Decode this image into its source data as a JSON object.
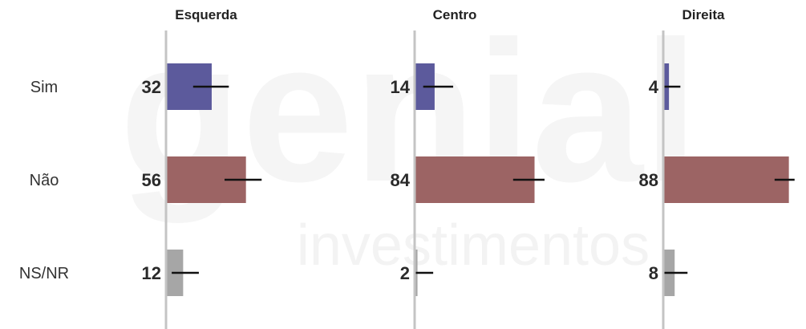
{
  "watermark": {
    "line1": "genial",
    "line2": "investimentos"
  },
  "colors": {
    "Sim": "#5c5a9c",
    "Não": "#9c6464",
    "NS/NR": "#a6a6a6",
    "axis": "#c4c4c4",
    "errorbar": "#111111"
  },
  "chart_data": {
    "type": "bar",
    "orientation": "horizontal",
    "categories": [
      "Sim",
      "Não",
      "NS/NR"
    ],
    "panels": [
      {
        "title": "Esquerda",
        "values": [
          32,
          56,
          12
        ],
        "labels": [
          "32",
          "56",
          "12"
        ],
        "error_low": [
          19,
          41,
          4
        ],
        "error_high": [
          44,
          67,
          23
        ]
      },
      {
        "title": "Centro",
        "values": [
          14,
          84,
          2
        ],
        "labels": [
          "14",
          "84",
          "2"
        ],
        "error_low": [
          6,
          69,
          0
        ],
        "error_high": [
          27,
          91,
          13
        ]
      },
      {
        "title": "Direita",
        "values": [
          4,
          88,
          8
        ],
        "labels": [
          "4",
          "88",
          "8"
        ],
        "error_low": [
          0,
          78,
          0
        ],
        "error_high": [
          12,
          92,
          17
        ]
      }
    ],
    "xlim": [
      0,
      100
    ],
    "grid": false,
    "legend": "none"
  }
}
